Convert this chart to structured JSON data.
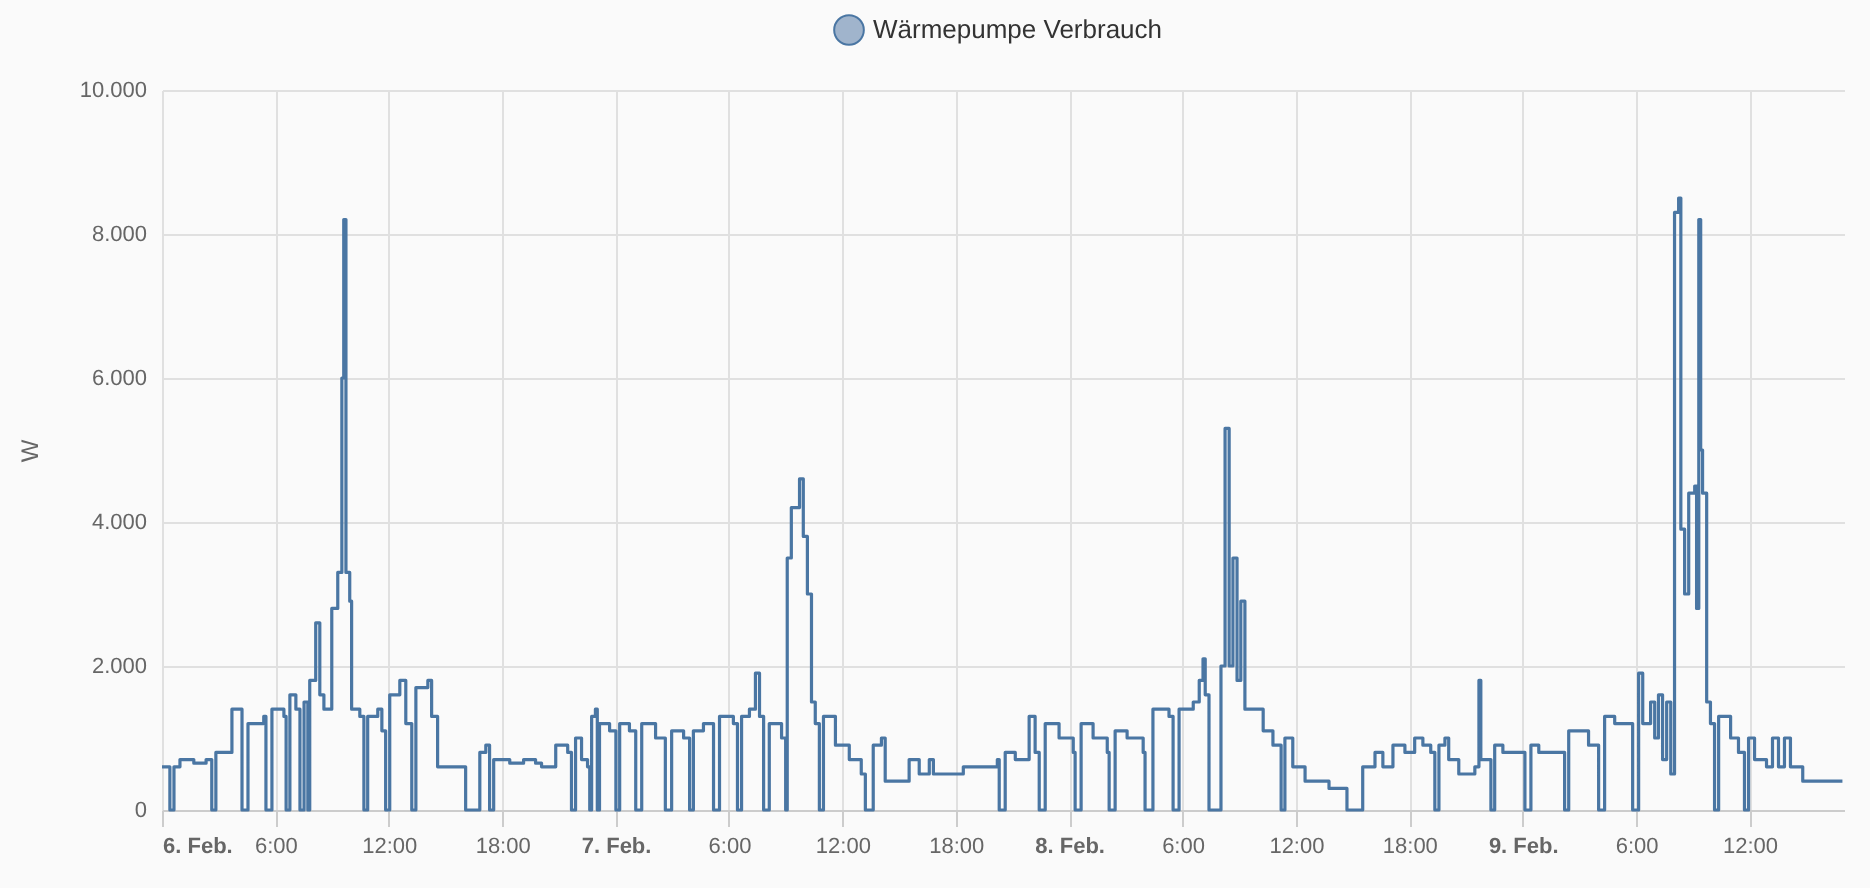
{
  "chart_data": {
    "type": "step",
    "ylabel": "W",
    "legend": "top",
    "grid": true,
    "xlim": [
      "--02-06T00:00",
      "--02-09T17:00"
    ],
    "ylim": [
      0,
      10000
    ],
    "xticks": [
      {
        "value": "--02-06T00:00",
        "label": "6. Feb."
      },
      {
        "value": "--02-06T06:00",
        "label": "6:00"
      },
      {
        "value": "--02-06T12:00",
        "label": "12:00"
      },
      {
        "value": "--02-06T18:00",
        "label": "18:00"
      },
      {
        "value": "--02-07T00:00",
        "label": "7. Feb."
      },
      {
        "value": "--02-07T06:00",
        "label": "6:00"
      },
      {
        "value": "--02-07T12:00",
        "label": "12:00"
      },
      {
        "value": "--02-07T18:00",
        "label": "18:00"
      },
      {
        "value": "--02-08T00:00",
        "label": "8. Feb."
      },
      {
        "value": "--02-08T06:00",
        "label": "6:00"
      },
      {
        "value": "--02-08T12:00",
        "label": "12:00"
      },
      {
        "value": "--02-08T18:00",
        "label": "18:00"
      },
      {
        "value": "--02-09T00:00",
        "label": "9. Feb."
      },
      {
        "value": "--02-09T06:00",
        "label": "6:00"
      },
      {
        "value": "--02-09T12:00",
        "label": "12:00"
      }
    ],
    "yticks": [
      0,
      {
        "value": 2000,
        "label": "2.000"
      },
      {
        "value": 4000,
        "label": "4.000"
      },
      {
        "value": 6000,
        "label": "6.000"
      },
      {
        "value": 8000,
        "label": "8.000"
      },
      {
        "value": 10000,
        "label": "10.000"
      }
    ],
    "series": [
      {
        "name": "Wärmepumpe Verbrauch",
        "color": "#4a76a3",
        "x": [
          "--02-06T00:00",
          "--02-06T00:25",
          "--02-06T00:38",
          "--02-06T00:57",
          "--02-06T01:41",
          "--02-06T02:20",
          "--02-06T02:38",
          "--02-06T02:51",
          "--02-06T03:42",
          "--02-06T04:14",
          "--02-06T04:33",
          "--02-06T05:23",
          "--02-06T05:30",
          "--02-06T05:49",
          "--02-06T06:27",
          "--02-06T06:34",
          "--02-06T06:46",
          "--02-06T07:05",
          "--02-06T07:18",
          "--02-06T07:31",
          "--02-06T07:43",
          "--02-06T07:49",
          "--02-06T08:08",
          "--02-06T08:21",
          "--02-06T08:34",
          "--02-06T08:59",
          "--02-06T09:18",
          "--02-06T09:31",
          "--02-06T09:37",
          "--02-06T09:44",
          "--02-06T09:56",
          "--02-06T10:02",
          "--02-06T10:28",
          "--02-06T10:41",
          "--02-06T10:53",
          "--02-06T11:25",
          "--02-06T11:38",
          "--02-06T11:50",
          "--02-06T12:03",
          "--02-06T12:35",
          "--02-06T12:54",
          "--02-06T13:13",
          "--02-06T13:26",
          "--02-06T14:04",
          "--02-06T14:16",
          "--02-06T14:35",
          "--02-06T15:14",
          "--02-06T15:52",
          "--02-06T16:04",
          "--02-06T16:49",
          "--02-06T17:08",
          "--02-06T17:20",
          "--02-06T17:33",
          "--02-06T18:24",
          "--02-06T19:08",
          "--02-06T19:46",
          "--02-06T20:05",
          "--02-06T20:50",
          "--02-06T21:28",
          "--02-06T21:40",
          "--02-06T21:53",
          "--02-06T22:12",
          "--02-06T22:31",
          "--02-06T22:38",
          "--02-06T22:44",
          "--02-06T22:56",
          "--02-06T23:02",
          "--02-06T23:09",
          "--02-06T23:41",
          "--02-07T00:01",
          "--02-07T00:13",
          "--02-07T00:44",
          "--02-07T01:04",
          "--02-07T01:23",
          "--02-07T02:07",
          "--02-07T02:38",
          "--02-07T02:58",
          "--02-07T03:36",
          "--02-07T03:55",
          "--02-07T04:07",
          "--02-07T04:39",
          "--02-07T05:11",
          "--02-07T05:30",
          "--02-07T06:14",
          "--02-07T06:27",
          "--02-07T06:40",
          "--02-07T07:05",
          "--02-07T07:24",
          "--02-07T07:37",
          "--02-07T07:50",
          "--02-07T08:08",
          "--02-07T08:47",
          "--02-07T09:00",
          "--02-07T09:05",
          "--02-07T09:18",
          "--02-07T09:44",
          "--02-07T09:56",
          "--02-07T10:09",
          "--02-07T10:22",
          "--02-07T10:34",
          "--02-07T10:47",
          "--02-07T11:00",
          "--02-07T11:13",
          "--02-07T11:38",
          "--02-07T12:22",
          "--02-07T13:00",
          "--02-07T13:13",
          "--02-07T13:38",
          "--02-07T14:04",
          "--02-07T14:16",
          "--02-07T15:14",
          "--02-07T15:32",
          "--02-07T16:04",
          "--02-07T16:36",
          "--02-07T16:49",
          "--02-07T17:58",
          "--02-07T18:24",
          "--02-07T19:46",
          "--02-07T20:12",
          "--02-07T20:18",
          "--02-07T20:37",
          "--02-07T21:09",
          "--02-07T21:41",
          "--02-07T21:53",
          "--02-07T22:12",
          "--02-07T22:25",
          "--02-07T22:44",
          "--02-07T23:28",
          "--02-08T00:13",
          "--02-08T00:19",
          "--02-08T00:38",
          "--02-08T01:16",
          "--02-08T02:01",
          "--02-08T02:07",
          "--02-08T02:26",
          "--02-08T03:04",
          "--02-08T03:55",
          "--02-08T04:01",
          "--02-08T04:26",
          "--02-08T05:17",
          "--02-08T05:30",
          "--02-08T05:49",
          "--02-08T06:34",
          "--02-08T06:53",
          "--02-08T07:05",
          "--02-08T07:12",
          "--02-08T07:24",
          "--02-08T08:02",
          "--02-08T08:15",
          "--02-08T08:28",
          "--02-08T08:40",
          "--02-08T08:53",
          "--02-08T09:05",
          "--02-08T09:18",
          "--02-08T09:50",
          "--02-08T10:16",
          "--02-08T10:47",
          "--02-08T11:13",
          "--02-08T11:25",
          "--02-08T11:50",
          "--02-08T12:29",
          "--02-08T13:13",
          "--02-08T13:45",
          "--02-08T14:35",
          "--02-08T14:42",
          "--02-08T15:32",
          "--02-08T16:11",
          "--02-08T16:36",
          "--02-08T17:08",
          "--02-08T17:46",
          "--02-08T18:17",
          "--02-08T18:43",
          "--02-08T19:08",
          "--02-08T19:21",
          "--02-08T19:34",
          "--02-08T19:53",
          "--02-08T20:05",
          "--02-08T20:37",
          "--02-08T21:28",
          "--02-08T21:41",
          "--02-08T21:47",
          "--02-08T22:19",
          "--02-08T22:31",
          "--02-08T22:57",
          "--02-08T23:35",
          "--02-09T00:07",
          "--02-09T00:26",
          "--02-09T00:51",
          "--02-09T01:41",
          "--02-09T02:13",
          "--02-09T02:26",
          "--02-09T03:29",
          "--02-09T04:01",
          "--02-09T04:20",
          "--02-09T04:52",
          "--02-09T05:43",
          "--02-09T05:49",
          "--02-09T06:08",
          "--02-09T06:21",
          "--02-09T06:46",
          "--02-09T06:59",
          "--02-09T07:11",
          "--02-09T07:24",
          "--02-09T07:37",
          "--02-09T07:50",
          "--02-09T08:02",
          "--02-09T08:15",
          "--02-09T08:22",
          "--02-09T08:34",
          "--02-09T08:47",
          "--02-09T09:06",
          "--02-09T09:12",
          "--02-09T09:19",
          "--02-09T09:25",
          "--02-09T09:31",
          "--02-09T09:44",
          "--02-09T09:56",
          "--02-09T10:09",
          "--02-09T10:22",
          "--02-09T10:41",
          "--02-09T11:00",
          "--02-09T11:25",
          "--02-09T11:44",
          "--02-09T11:57",
          "--02-09T12:16",
          "--02-09T12:54",
          "--02-09T13:13",
          "--02-09T13:32",
          "--02-09T13:51",
          "--02-09T14:10",
          "--02-09T14:49",
          "--02-09T16:55"
        ],
        "values": [
          600,
          0,
          600,
          700,
          650,
          700,
          0,
          800,
          1400,
          0,
          1200,
          1300,
          0,
          1400,
          1300,
          0,
          1600,
          1400,
          0,
          1500,
          0,
          1800,
          2600,
          1600,
          1400,
          2800,
          3300,
          6000,
          8200,
          3300,
          2900,
          1400,
          1300,
          0,
          1300,
          1400,
          1100,
          0,
          1600,
          1800,
          1200,
          0,
          1700,
          1800,
          1300,
          600,
          600,
          600,
          0,
          800,
          900,
          0,
          700,
          650,
          700,
          650,
          600,
          900,
          800,
          0,
          1000,
          700,
          600,
          0,
          1300,
          1400,
          0,
          1200,
          1100,
          0,
          1200,
          1100,
          0,
          1200,
          1000,
          0,
          1100,
          1000,
          0,
          1100,
          1200,
          0,
          1300,
          1200,
          0,
          1300,
          1400,
          1900,
          1300,
          0,
          1200,
          1000,
          0,
          3500,
          4200,
          4600,
          3800,
          3000,
          1500,
          1200,
          0,
          1300,
          1300,
          900,
          700,
          500,
          0,
          900,
          1000,
          400,
          400,
          700,
          500,
          700,
          500,
          500,
          600,
          600,
          700,
          0,
          800,
          700,
          700,
          1300,
          800,
          0,
          1200,
          1000,
          800,
          0,
          1200,
          1000,
          800,
          0,
          1100,
          1000,
          800,
          0,
          1400,
          1300,
          0,
          1400,
          1500,
          1800,
          2100,
          1600,
          0,
          2000,
          5300,
          2000,
          3500,
          1800,
          2900,
          1400,
          1400,
          1100,
          900,
          0,
          1000,
          600,
          400,
          400,
          300,
          300,
          0,
          600,
          800,
          600,
          900,
          800,
          1000,
          900,
          800,
          0,
          900,
          1000,
          700,
          500,
          600,
          1800,
          700,
          0,
          900,
          800,
          800,
          0,
          900,
          800,
          800,
          0,
          1100,
          900,
          0,
          1300,
          1200,
          1200,
          0,
          1900,
          1200,
          1500,
          1000,
          1600,
          700,
          1500,
          500,
          8300,
          8500,
          3900,
          3000,
          4400,
          4500,
          2800,
          8200,
          5000,
          4400,
          1500,
          1200,
          0,
          1300,
          1300,
          1000,
          800,
          0,
          1000,
          700,
          600,
          1000,
          600,
          1000,
          600,
          400,
          400
        ]
      }
    ]
  }
}
